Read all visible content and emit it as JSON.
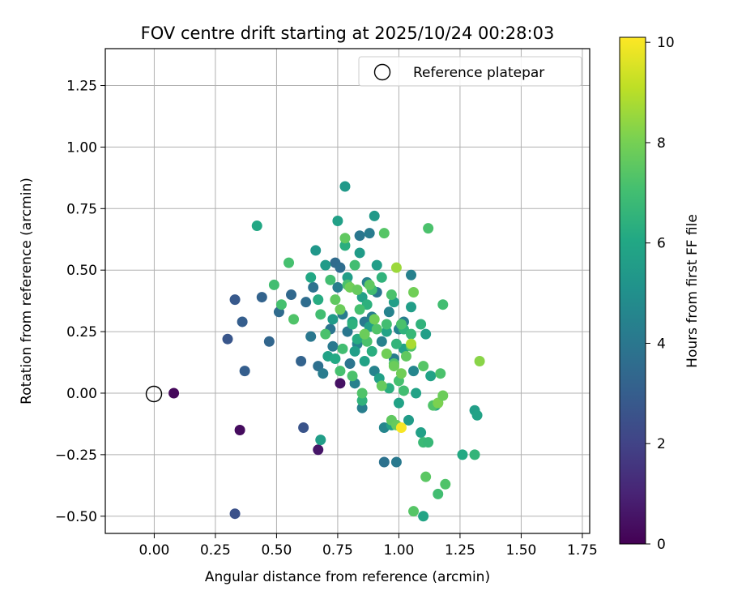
{
  "chart_data": {
    "type": "scatter",
    "title": "FOV centre drift starting at 2025/10/24 00:28:03",
    "xlabel": "Angular distance from reference (arcmin)",
    "ylabel": "Rotation from reference (arcmin)",
    "xlim": [
      -0.2,
      1.78
    ],
    "ylim": [
      -0.57,
      1.4
    ],
    "x_ticks": [
      0.0,
      0.25,
      0.5,
      0.75,
      1.0,
      1.25,
      1.5,
      1.75
    ],
    "x_tick_labels": [
      "0.00",
      "0.25",
      "0.50",
      "0.75",
      "1.00",
      "1.25",
      "1.50",
      "1.75"
    ],
    "y_ticks": [
      -0.5,
      -0.25,
      0.0,
      0.25,
      0.5,
      0.75,
      1.0,
      1.25
    ],
    "y_tick_labels": [
      "−0.50",
      "−0.25",
      "0.00",
      "0.25",
      "0.50",
      "0.75",
      "1.00",
      "1.25"
    ],
    "grid": true,
    "legend": {
      "label": "Reference platepar",
      "placement": "top-right"
    },
    "reference": {
      "x": 0.0,
      "y": 0.0
    },
    "colorbar": {
      "label": "Hours from first FF file",
      "min": 0,
      "max": 10.1,
      "ticks": [
        0,
        2,
        4,
        6,
        8,
        10
      ],
      "tick_labels": [
        "0",
        "2",
        "4",
        "6",
        "8",
        "10"
      ],
      "colormap": "viridis"
    },
    "points": [
      {
        "x": 0.08,
        "y": 0.0,
        "h": 0.2
      },
      {
        "x": 0.35,
        "y": -0.15,
        "h": 0.3
      },
      {
        "x": 0.67,
        "y": -0.23,
        "h": 0.6
      },
      {
        "x": 0.76,
        "y": 0.04,
        "h": 0.5
      },
      {
        "x": 0.33,
        "y": -0.49,
        "h": 2.5
      },
      {
        "x": 0.61,
        "y": -0.14,
        "h": 2.6
      },
      {
        "x": 0.3,
        "y": 0.22,
        "h": 2.7
      },
      {
        "x": 0.33,
        "y": 0.38,
        "h": 2.8
      },
      {
        "x": 0.36,
        "y": 0.29,
        "h": 3.0
      },
      {
        "x": 0.37,
        "y": 0.09,
        "h": 3.0
      },
      {
        "x": 0.44,
        "y": 0.39,
        "h": 3.2
      },
      {
        "x": 0.47,
        "y": 0.21,
        "h": 3.3
      },
      {
        "x": 0.51,
        "y": 0.33,
        "h": 3.5
      },
      {
        "x": 0.56,
        "y": 0.4,
        "h": 3.4
      },
      {
        "x": 0.6,
        "y": 0.13,
        "h": 3.2
      },
      {
        "x": 0.62,
        "y": 0.37,
        "h": 3.6
      },
      {
        "x": 0.64,
        "y": 0.23,
        "h": 4.0
      },
      {
        "x": 0.65,
        "y": 0.43,
        "h": 3.8
      },
      {
        "x": 0.67,
        "y": 0.11,
        "h": 3.7
      },
      {
        "x": 0.69,
        "y": 0.08,
        "h": 4.2
      },
      {
        "x": 0.72,
        "y": 0.26,
        "h": 3.9
      },
      {
        "x": 0.73,
        "y": 0.19,
        "h": 4.1
      },
      {
        "x": 0.74,
        "y": 0.53,
        "h": 3.5
      },
      {
        "x": 0.75,
        "y": 0.43,
        "h": 4.3
      },
      {
        "x": 0.76,
        "y": 0.51,
        "h": 3.6
      },
      {
        "x": 0.77,
        "y": 0.32,
        "h": 4.2
      },
      {
        "x": 0.79,
        "y": 0.25,
        "h": 4.0
      },
      {
        "x": 0.8,
        "y": 0.12,
        "h": 3.9
      },
      {
        "x": 0.82,
        "y": 0.04,
        "h": 4.4
      },
      {
        "x": 0.83,
        "y": 0.2,
        "h": 4.5
      },
      {
        "x": 0.84,
        "y": 0.64,
        "h": 4.0
      },
      {
        "x": 0.85,
        "y": -0.06,
        "h": 4.3
      },
      {
        "x": 0.86,
        "y": 0.29,
        "h": 4.1
      },
      {
        "x": 0.87,
        "y": 0.45,
        "h": 4.4
      },
      {
        "x": 0.88,
        "y": 0.65,
        "h": 4.2
      },
      {
        "x": 0.89,
        "y": 0.31,
        "h": 4.3
      },
      {
        "x": 0.9,
        "y": 0.09,
        "h": 4.5
      },
      {
        "x": 0.91,
        "y": 0.41,
        "h": 4.0
      },
      {
        "x": 0.93,
        "y": 0.21,
        "h": 4.4
      },
      {
        "x": 0.94,
        "y": -0.14,
        "h": 4.6
      },
      {
        "x": 0.94,
        "y": -0.28,
        "h": 3.8
      },
      {
        "x": 0.96,
        "y": 0.33,
        "h": 4.5
      },
      {
        "x": 0.98,
        "y": 0.14,
        "h": 4.2
      },
      {
        "x": 0.99,
        "y": -0.28,
        "h": 4.1
      },
      {
        "x": 1.0,
        "y": 0.26,
        "h": 4.5
      },
      {
        "x": 1.02,
        "y": 0.29,
        "h": 4.3
      },
      {
        "x": 1.05,
        "y": 0.48,
        "h": 4.4
      },
      {
        "x": 1.06,
        "y": 0.09,
        "h": 4.6
      },
      {
        "x": 0.66,
        "y": 0.58,
        "h": 5.3
      },
      {
        "x": 0.68,
        "y": -0.19,
        "h": 5.6
      },
      {
        "x": 0.7,
        "y": 0.52,
        "h": 5.5
      },
      {
        "x": 0.71,
        "y": 0.15,
        "h": 5.8
      },
      {
        "x": 0.73,
        "y": 0.3,
        "h": 5.5
      },
      {
        "x": 0.75,
        "y": 0.7,
        "h": 5.7
      },
      {
        "x": 0.78,
        "y": 0.84,
        "h": 5.4
      },
      {
        "x": 0.79,
        "y": 0.47,
        "h": 5.6
      },
      {
        "x": 0.81,
        "y": 0.29,
        "h": 5.8
      },
      {
        "x": 0.82,
        "y": 0.17,
        "h": 5.6
      },
      {
        "x": 0.84,
        "y": 0.57,
        "h": 5.5
      },
      {
        "x": 0.85,
        "y": 0.39,
        "h": 5.7
      },
      {
        "x": 0.86,
        "y": 0.13,
        "h": 5.8
      },
      {
        "x": 0.88,
        "y": 0.27,
        "h": 5.6
      },
      {
        "x": 0.9,
        "y": 0.72,
        "h": 5.4
      },
      {
        "x": 0.91,
        "y": 0.52,
        "h": 5.6
      },
      {
        "x": 0.92,
        "y": 0.06,
        "h": 5.7
      },
      {
        "x": 0.95,
        "y": 0.25,
        "h": 5.8
      },
      {
        "x": 0.97,
        "y": -0.13,
        "h": 5.7
      },
      {
        "x": 0.98,
        "y": 0.37,
        "h": 5.6
      },
      {
        "x": 1.0,
        "y": -0.04,
        "h": 5.8
      },
      {
        "x": 1.02,
        "y": 0.18,
        "h": 5.7
      },
      {
        "x": 1.04,
        "y": -0.11,
        "h": 5.5
      },
      {
        "x": 1.05,
        "y": 0.35,
        "h": 5.6
      },
      {
        "x": 1.07,
        "y": 0.0,
        "h": 5.8
      },
      {
        "x": 1.09,
        "y": -0.16,
        "h": 5.7
      },
      {
        "x": 1.1,
        "y": -0.5,
        "h": 5.9
      },
      {
        "x": 1.11,
        "y": 0.24,
        "h": 5.6
      },
      {
        "x": 1.13,
        "y": 0.07,
        "h": 5.8
      },
      {
        "x": 1.15,
        "y": -0.05,
        "h": 5.7
      },
      {
        "x": 1.26,
        "y": -0.25,
        "h": 6.1
      },
      {
        "x": 1.31,
        "y": -0.07,
        "h": 5.6
      },
      {
        "x": 1.32,
        "y": -0.09,
        "h": 5.8
      },
      {
        "x": 0.42,
        "y": 0.68,
        "h": 6.0
      },
      {
        "x": 0.64,
        "y": 0.47,
        "h": 6.0
      },
      {
        "x": 0.67,
        "y": 0.38,
        "h": 6.2
      },
      {
        "x": 0.74,
        "y": 0.14,
        "h": 6.1
      },
      {
        "x": 0.78,
        "y": 0.6,
        "h": 6.3
      },
      {
        "x": 0.81,
        "y": 0.28,
        "h": 6.4
      },
      {
        "x": 0.83,
        "y": 0.22,
        "h": 6.2
      },
      {
        "x": 0.85,
        "y": -0.03,
        "h": 6.5
      },
      {
        "x": 0.87,
        "y": 0.36,
        "h": 6.4
      },
      {
        "x": 0.89,
        "y": 0.17,
        "h": 6.3
      },
      {
        "x": 0.93,
        "y": 0.47,
        "h": 6.5
      },
      {
        "x": 0.96,
        "y": 0.02,
        "h": 6.3
      },
      {
        "x": 0.99,
        "y": 0.2,
        "h": 6.6
      },
      {
        "x": 1.02,
        "y": 0.26,
        "h": 6.5
      },
      {
        "x": 1.05,
        "y": 0.24,
        "h": 6.7
      },
      {
        "x": 1.09,
        "y": 0.28,
        "h": 6.5
      },
      {
        "x": 1.1,
        "y": -0.2,
        "h": 6.8
      },
      {
        "x": 1.12,
        "y": -0.2,
        "h": 6.7
      },
      {
        "x": 1.16,
        "y": -0.04,
        "h": 6.7
      },
      {
        "x": 1.31,
        "y": -0.25,
        "h": 6.6
      },
      {
        "x": 0.49,
        "y": 0.44,
        "h": 7.0
      },
      {
        "x": 0.52,
        "y": 0.36,
        "h": 7.1
      },
      {
        "x": 0.55,
        "y": 0.53,
        "h": 7.1
      },
      {
        "x": 0.57,
        "y": 0.3,
        "h": 7.3
      },
      {
        "x": 0.68,
        "y": 0.32,
        "h": 7.0
      },
      {
        "x": 0.7,
        "y": 0.24,
        "h": 7.2
      },
      {
        "x": 0.72,
        "y": 0.46,
        "h": 7.0
      },
      {
        "x": 0.76,
        "y": 0.09,
        "h": 7.1
      },
      {
        "x": 0.77,
        "y": 0.18,
        "h": 7.0
      },
      {
        "x": 0.79,
        "y": 0.44,
        "h": 7.2
      },
      {
        "x": 0.81,
        "y": 0.07,
        "h": 7.2
      },
      {
        "x": 0.82,
        "y": 0.52,
        "h": 7.0
      },
      {
        "x": 0.84,
        "y": 0.34,
        "h": 7.1
      },
      {
        "x": 0.85,
        "y": 0.0,
        "h": 7.3
      },
      {
        "x": 0.87,
        "y": 0.21,
        "h": 7.2
      },
      {
        "x": 0.89,
        "y": 0.42,
        "h": 7.0
      },
      {
        "x": 0.91,
        "y": 0.26,
        "h": 7.3
      },
      {
        "x": 0.94,
        "y": 0.65,
        "h": 7.4
      },
      {
        "x": 0.95,
        "y": 0.28,
        "h": 7.0
      },
      {
        "x": 0.97,
        "y": 0.4,
        "h": 7.2
      },
      {
        "x": 0.98,
        "y": 0.12,
        "h": 7.3
      },
      {
        "x": 1.0,
        "y": 0.05,
        "h": 7.1
      },
      {
        "x": 1.01,
        "y": 0.28,
        "h": 7.2
      },
      {
        "x": 1.02,
        "y": 0.01,
        "h": 7.0
      },
      {
        "x": 1.05,
        "y": 0.19,
        "h": 7.3
      },
      {
        "x": 1.1,
        "y": 0.11,
        "h": 7.4
      },
      {
        "x": 1.12,
        "y": 0.67,
        "h": 7.2
      },
      {
        "x": 1.14,
        "y": -0.05,
        "h": 7.3
      },
      {
        "x": 1.16,
        "y": -0.41,
        "h": 7.0
      },
      {
        "x": 1.17,
        "y": 0.08,
        "h": 7.2
      },
      {
        "x": 1.18,
        "y": 0.36,
        "h": 7.0
      },
      {
        "x": 1.19,
        "y": -0.37,
        "h": 7.3
      },
      {
        "x": 1.06,
        "y": -0.48,
        "h": 7.4
      },
      {
        "x": 1.11,
        "y": -0.34,
        "h": 7.5
      },
      {
        "x": 0.74,
        "y": 0.38,
        "h": 7.6
      },
      {
        "x": 0.76,
        "y": 0.34,
        "h": 7.8
      },
      {
        "x": 0.78,
        "y": 0.63,
        "h": 7.6
      },
      {
        "x": 0.8,
        "y": 0.43,
        "h": 7.9
      },
      {
        "x": 0.83,
        "y": 0.42,
        "h": 7.7
      },
      {
        "x": 0.86,
        "y": 0.24,
        "h": 7.8
      },
      {
        "x": 0.88,
        "y": 0.44,
        "h": 7.6
      },
      {
        "x": 0.9,
        "y": 0.3,
        "h": 7.9
      },
      {
        "x": 0.93,
        "y": 0.03,
        "h": 7.7
      },
      {
        "x": 0.95,
        "y": 0.16,
        "h": 7.9
      },
      {
        "x": 0.97,
        "y": -0.11,
        "h": 7.6
      },
      {
        "x": 0.98,
        "y": 0.11,
        "h": 7.8
      },
      {
        "x": 0.99,
        "y": -0.13,
        "h": 7.7
      },
      {
        "x": 1.01,
        "y": 0.08,
        "h": 7.9
      },
      {
        "x": 1.03,
        "y": 0.15,
        "h": 7.6
      },
      {
        "x": 1.06,
        "y": 0.41,
        "h": 7.9
      },
      {
        "x": 1.16,
        "y": -0.04,
        "h": 8.1
      },
      {
        "x": 1.18,
        "y": -0.01,
        "h": 7.8
      },
      {
        "x": 1.33,
        "y": 0.13,
        "h": 8.3
      },
      {
        "x": 0.99,
        "y": 0.51,
        "h": 8.6
      },
      {
        "x": 1.05,
        "y": 0.2,
        "h": 8.8
      },
      {
        "x": 1.01,
        "y": -0.14,
        "h": 10.0
      }
    ]
  }
}
